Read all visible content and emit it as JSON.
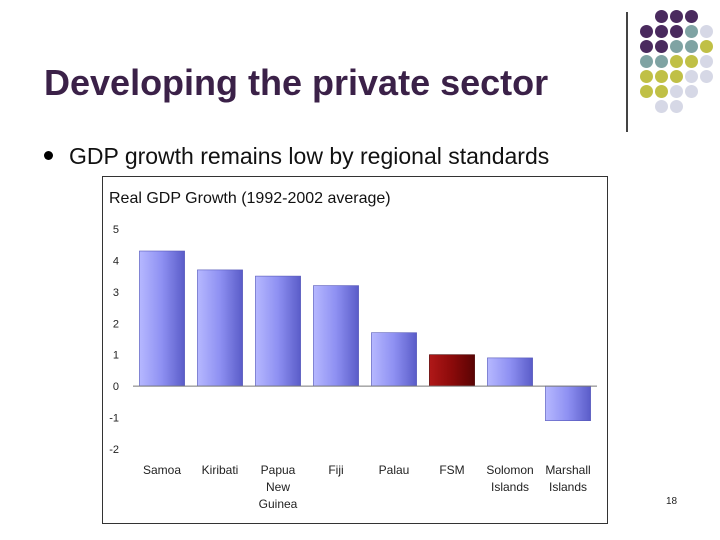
{
  "slide": {
    "title": "Developing the private sector",
    "bullet": "GDP growth remains low by regional standards",
    "page_number": "18",
    "accent_colors": [
      "#4a2a5e",
      "#7fa3a3",
      "#c0c046",
      "#d6d8e6"
    ]
  },
  "chart_data": {
    "type": "bar",
    "title": "Real GDP Growth (1992-2002 average)",
    "categories": [
      "Samoa",
      "Kiribati",
      "Papua New Guinea",
      "Fiji",
      "Palau",
      "FSM",
      "Solomon Islands",
      "Marshall Islands"
    ],
    "category_lines": [
      [
        "Samoa"
      ],
      [
        "Kiribati"
      ],
      [
        "Papua",
        "New",
        "Guinea"
      ],
      [
        "Fiji"
      ],
      [
        "Palau"
      ],
      [
        "FSM"
      ],
      [
        "Solomon",
        "Islands"
      ],
      [
        "Marshall",
        "Islands"
      ]
    ],
    "values": [
      4.3,
      3.7,
      3.5,
      3.2,
      1.7,
      1.0,
      0.9,
      -1.1
    ],
    "highlight": "FSM",
    "colors": {
      "bar": "#8c8ef0",
      "highlight": "#8b0a0a"
    },
    "ylim": [
      -2,
      5
    ],
    "yticks": [
      "5",
      "4",
      "3",
      "2",
      "1",
      "0",
      "-1",
      "-2"
    ],
    "grid": false,
    "xlabel": "",
    "ylabel": ""
  }
}
